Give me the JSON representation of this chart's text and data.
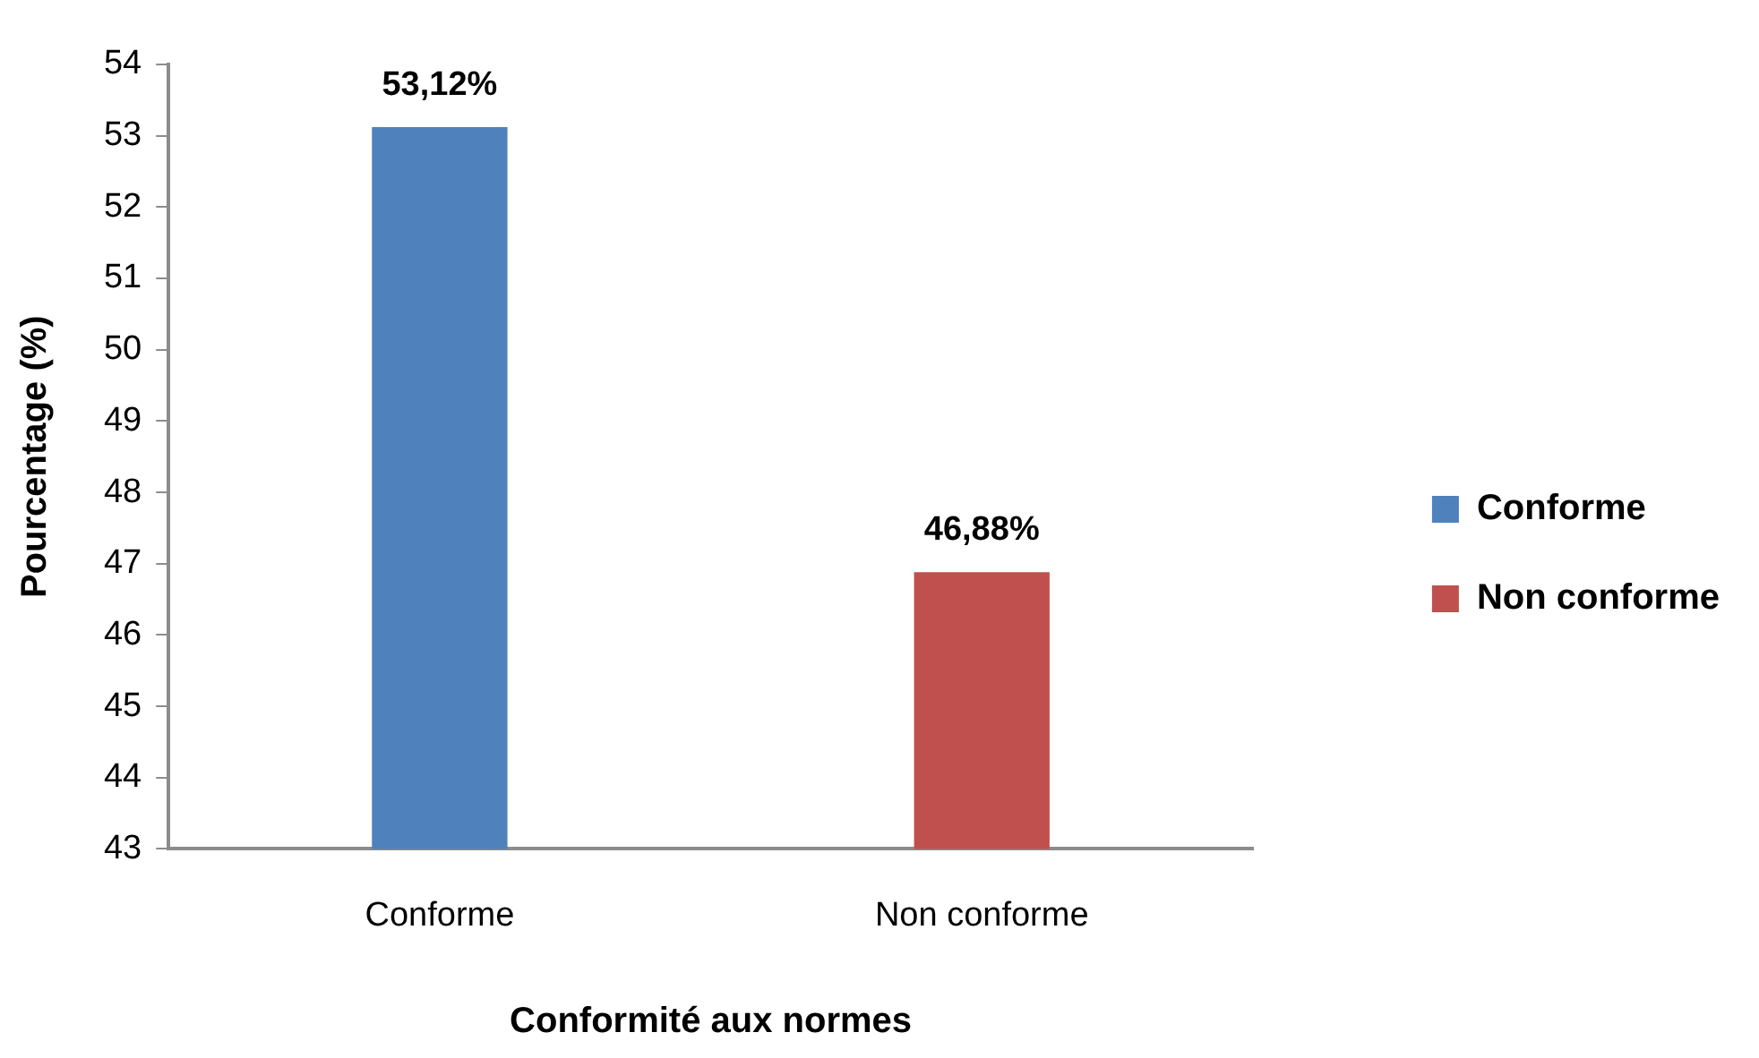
{
  "chart_data": {
    "type": "bar",
    "categories": [
      "Conforme",
      "Non conforme"
    ],
    "series": [
      {
        "name": "Conforme",
        "color": "#4f81bd",
        "values": [
          53.12,
          null
        ],
        "value_labels": [
          "53,12%",
          null
        ]
      },
      {
        "name": "Non conforme",
        "color": "#c0504d",
        "values": [
          null,
          46.88
        ],
        "value_labels": [
          null,
          "46,88%"
        ]
      }
    ],
    "xlabel": "Conformité aux normes",
    "ylabel": "Pourcentage (%)",
    "ylim": [
      43,
      54
    ],
    "yticks": [
      43,
      44,
      45,
      46,
      47,
      48,
      49,
      50,
      51,
      52,
      53,
      54
    ],
    "legend": "right",
    "grid": false
  }
}
